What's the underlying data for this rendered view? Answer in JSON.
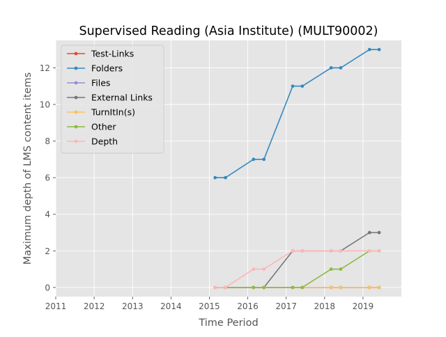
{
  "chart_data": {
    "type": "line",
    "title": "Supervised Reading (Asia Institute) (MULT90002)",
    "xlabel": "Time Period",
    "ylabel": "Maximum depth of LMS content items",
    "xlim": [
      2011,
      2020
    ],
    "ylim": [
      -0.5,
      13.5
    ],
    "xticks": [
      2011,
      2012,
      2013,
      2014,
      2015,
      2016,
      2017,
      2018,
      2019
    ],
    "yticks": [
      0,
      2,
      4,
      6,
      8,
      10,
      12
    ],
    "grid": true,
    "legend_position": "top-left",
    "x": [
      2015.15,
      2015.42,
      2016.15,
      2016.42,
      2017.17,
      2017.42,
      2018.17,
      2018.42,
      2019.17,
      2019.42
    ],
    "series": [
      {
        "name": "Test-Links",
        "color": "#E24A33",
        "values": [
          0,
          0,
          0,
          0,
          0,
          0,
          0,
          0,
          0,
          0
        ]
      },
      {
        "name": "Folders",
        "color": "#348ABD",
        "values": [
          6,
          6,
          7,
          7,
          11,
          11,
          12,
          12,
          13,
          13
        ]
      },
      {
        "name": "Files",
        "color": "#988ED5",
        "values": [
          0,
          0,
          0,
          0,
          0,
          0,
          0,
          0,
          0,
          0
        ]
      },
      {
        "name": "External Links",
        "color": "#777777",
        "values": [
          0,
          0,
          0,
          0,
          2,
          2,
          2,
          2,
          3,
          3
        ]
      },
      {
        "name": "TurnItIn(s)",
        "color": "#FBC15E",
        "values": [
          0,
          0,
          0,
          0,
          0,
          0,
          0,
          0,
          0,
          0
        ]
      },
      {
        "name": "Other",
        "color": "#8EBA42",
        "values": [
          0,
          0,
          0,
          0,
          0,
          0,
          1,
          1,
          2,
          2
        ]
      },
      {
        "name": "Depth",
        "color": "#FFB5B8",
        "values": [
          0,
          0,
          1,
          1,
          2,
          2,
          2,
          2,
          2,
          2
        ]
      }
    ]
  }
}
